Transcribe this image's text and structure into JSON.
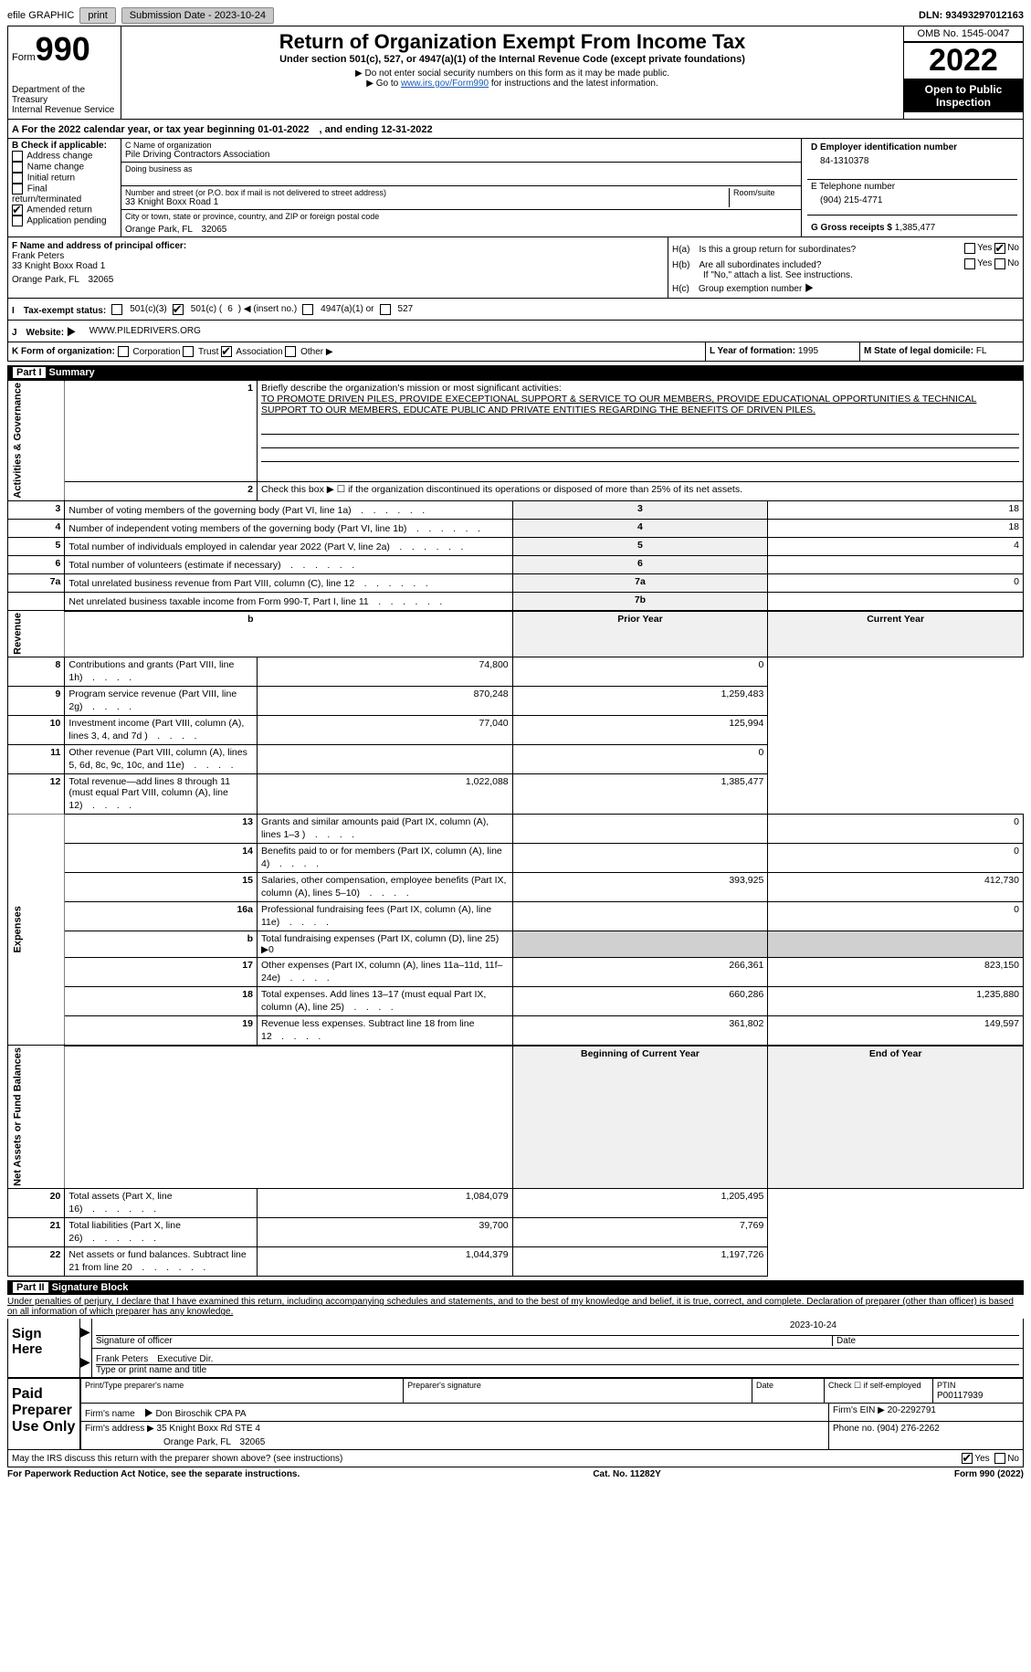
{
  "topbar": {
    "efile_label": "efile GRAPHIC",
    "print_btn": "print",
    "submission_label": "Submission Date - 2023-10-24",
    "dln_label": "DLN: 93493297012163"
  },
  "header": {
    "form_label": "Form",
    "form_no": "990",
    "dept": "Department of the Treasury\nInternal Revenue Service",
    "title": "Return of Organization Exempt From Income Tax",
    "subtitle": "Under section 501(c), 527, or 4947(a)(1) of the Internal Revenue Code (except private foundations)",
    "note1": "▶ Do not enter social security numbers on this form as it may be made public.",
    "note2_pre": "▶ Go to ",
    "note2_link": "www.irs.gov/Form990",
    "note2_post": " for instructions and the latest information.",
    "omb": "OMB No. 1545-0047",
    "year": "2022",
    "inspection": "Open to Public Inspection"
  },
  "row_a": "A For the 2022 calendar year, or tax year beginning 01-01-2022　, and ending 12-31-2022",
  "box_b": {
    "label": "B Check if applicable:",
    "items": [
      "Address change",
      "Name change",
      "Initial return",
      "Final return/terminated",
      "Amended return",
      "Application pending"
    ],
    "checked_idx": 4
  },
  "box_c": {
    "name_label": "C Name of organization",
    "name": "Pile Driving Contractors Association",
    "dba_label": "Doing business as",
    "addr_label": "Number and street (or P.O. box if mail is not delivered to street address)",
    "room_label": "Room/suite",
    "addr": "33 Knight Boxx Road 1",
    "city_label": "City or town, state or province, country, and ZIP or foreign postal code",
    "city": "Orange Park, FL　32065"
  },
  "box_d": {
    "ein_label": "D Employer identification number",
    "ein": "84-1310378",
    "tel_label": "E Telephone number",
    "tel": "(904) 215-4771",
    "gross_label": "G Gross receipts $",
    "gross": "1,385,477"
  },
  "box_f": {
    "label": "F Name and address of principal officer:",
    "name": "Frank Peters",
    "addr1": "33 Knight Boxx Road 1",
    "addr2": "Orange Park, FL　32065"
  },
  "box_h": {
    "ha": "H(a)　Is this a group return for subordinates?",
    "hb": "H(b)　Are all subordinates included?",
    "hb_note": "If \"No,\" attach a list. See instructions.",
    "hc": "H(c)　Group exemption number ▶",
    "yes": "Yes",
    "no": "No"
  },
  "row_i": {
    "label": "I　Tax-exempt status:",
    "o1": "501(c)(3)",
    "o2_pre": "501(c) (",
    "o2_val": "6",
    "o2_post": ") ◀ (insert no.)",
    "o3": "4947(a)(1) or",
    "o4": "527"
  },
  "row_j": {
    "label": "J　Website: ▶",
    "val": "WWW.PILEDRIVERS.ORG"
  },
  "row_k": {
    "label": "K Form of organization:",
    "opts": [
      "Corporation",
      "Trust",
      "Association",
      "Other ▶"
    ],
    "checked_idx": 2
  },
  "row_l": {
    "label": "L Year of formation:",
    "val": "1995"
  },
  "row_m": {
    "label": "M State of legal domicile:",
    "val": "FL"
  },
  "part1": {
    "header": "Summary",
    "part_label": "Part I",
    "q1_label": "Briefly describe the organization's mission or most significant activities:",
    "q1_text": "TO PROMOTE DRIVEN PILES, PROVIDE EXECEPTIONAL SUPPORT & SERVICE TO OUR MEMBERS, PROVIDE EDUCATIONAL OPPORTUNITIES & TECHNICAL SUPPORT TO OUR MEMBERS, EDUCATE PUBLIC AND PRIVATE ENTITIES REGARDING THE BENEFITS OF DRIVEN PILES.",
    "q2": "Check this box ▶ ☐ if the organization discontinued its operations or disposed of more than 25% of its net assets.",
    "side_labels": [
      "Activities & Governance",
      "Revenue",
      "Expenses",
      "Net Assets or Fund Balances"
    ],
    "col_prior": "Prior Year",
    "col_current": "Current Year",
    "col_begin": "Beginning of Current Year",
    "col_end": "End of Year",
    "lines_gov": [
      {
        "n": "3",
        "d": "Number of voting members of the governing body (Part VI, line 1a)",
        "box": "3",
        "v": "18"
      },
      {
        "n": "4",
        "d": "Number of independent voting members of the governing body (Part VI, line 1b)",
        "box": "4",
        "v": "18"
      },
      {
        "n": "5",
        "d": "Total number of individuals employed in calendar year 2022 (Part V, line 2a)",
        "box": "5",
        "v": "4"
      },
      {
        "n": "6",
        "d": "Total number of volunteers (estimate if necessary)",
        "box": "6",
        "v": ""
      },
      {
        "n": "7a",
        "d": "Total unrelated business revenue from Part VIII, column (C), line 12",
        "box": "7a",
        "v": "0"
      },
      {
        "n": "",
        "d": "Net unrelated business taxable income from Form 990-T, Part I, line 11",
        "box": "7b",
        "v": ""
      }
    ],
    "lines_rev": [
      {
        "n": "8",
        "d": "Contributions and grants (Part VIII, line 1h)",
        "p": "74,800",
        "c": "0"
      },
      {
        "n": "9",
        "d": "Program service revenue (Part VIII, line 2g)",
        "p": "870,248",
        "c": "1,259,483"
      },
      {
        "n": "10",
        "d": "Investment income (Part VIII, column (A), lines 3, 4, and 7d )",
        "p": "77,040",
        "c": "125,994"
      },
      {
        "n": "11",
        "d": "Other revenue (Part VIII, column (A), lines 5, 6d, 8c, 9c, 10c, and 11e)",
        "p": "",
        "c": "0"
      },
      {
        "n": "12",
        "d": "Total revenue—add lines 8 through 11 (must equal Part VIII, column (A), line 12)",
        "p": "1,022,088",
        "c": "1,385,477"
      }
    ],
    "lines_exp": [
      {
        "n": "13",
        "d": "Grants and similar amounts paid (Part IX, column (A), lines 1–3 )",
        "p": "",
        "c": "0"
      },
      {
        "n": "14",
        "d": "Benefits paid to or for members (Part IX, column (A), line 4)",
        "p": "",
        "c": "0"
      },
      {
        "n": "15",
        "d": "Salaries, other compensation, employee benefits (Part IX, column (A), lines 5–10)",
        "p": "393,925",
        "c": "412,730"
      },
      {
        "n": "16a",
        "d": "Professional fundraising fees (Part IX, column (A), line 11e)",
        "p": "",
        "c": "0"
      },
      {
        "n": "b",
        "d": "Total fundraising expenses (Part IX, column (D), line 25) ▶0",
        "p": "—shaded—",
        "c": "—shaded—",
        "shaded": true
      },
      {
        "n": "17",
        "d": "Other expenses (Part IX, column (A), lines 11a–11d, 11f–24e)",
        "p": "266,361",
        "c": "823,150"
      },
      {
        "n": "18",
        "d": "Total expenses. Add lines 13–17 (must equal Part IX, column (A), line 25)",
        "p": "660,286",
        "c": "1,235,880"
      },
      {
        "n": "19",
        "d": "Revenue less expenses. Subtract line 18 from line 12",
        "p": "361,802",
        "c": "149,597"
      }
    ],
    "lines_net": [
      {
        "n": "20",
        "d": "Total assets (Part X, line 16)",
        "p": "1,084,079",
        "c": "1,205,495"
      },
      {
        "n": "21",
        "d": "Total liabilities (Part X, line 26)",
        "p": "39,700",
        "c": "7,769"
      },
      {
        "n": "22",
        "d": "Net assets or fund balances. Subtract line 21 from line 20",
        "p": "1,044,379",
        "c": "1,197,726"
      }
    ]
  },
  "part2": {
    "part_label": "Part II",
    "header": "Signature Block",
    "declaration": "Under penalties of perjury, I declare that I have examined this return, including accompanying schedules and statements, and to the best of my knowledge and belief, it is true, correct, and complete. Declaration of preparer (other than officer) is based on all information of which preparer has any knowledge.",
    "sign_here": "Sign Here",
    "sig_officer": "Signature of officer",
    "date": "Date",
    "sig_date_val": "2023-10-24",
    "name_title": "Frank Peters　Executive Dir.",
    "name_title_label": "Type or print name and title",
    "paid_prep": "Paid Preparer Use Only",
    "prep_name_label": "Print/Type preparer's name",
    "prep_sig_label": "Preparer's signature",
    "check_self": "Check ☐ if self-employed",
    "ptin_label": "PTIN",
    "ptin": "P00117939",
    "firm_name_label": "Firm's name　▶",
    "firm_name": "Don Biroschik CPA PA",
    "firm_ein_label": "Firm's EIN ▶",
    "firm_ein": "20-2292791",
    "firm_addr_label": "Firm's address ▶",
    "firm_addr": "35 Knight Boxx Rd STE 4",
    "firm_city": "Orange Park, FL　32065",
    "phone_label": "Phone no.",
    "phone": "(904) 276-2262",
    "may_irs": "May the IRS discuss this return with the preparer shown above? (see instructions)"
  },
  "footer": {
    "left": "For Paperwork Reduction Act Notice, see the separate instructions.",
    "mid": "Cat. No. 11282Y",
    "right": "Form 990 (2022)"
  }
}
